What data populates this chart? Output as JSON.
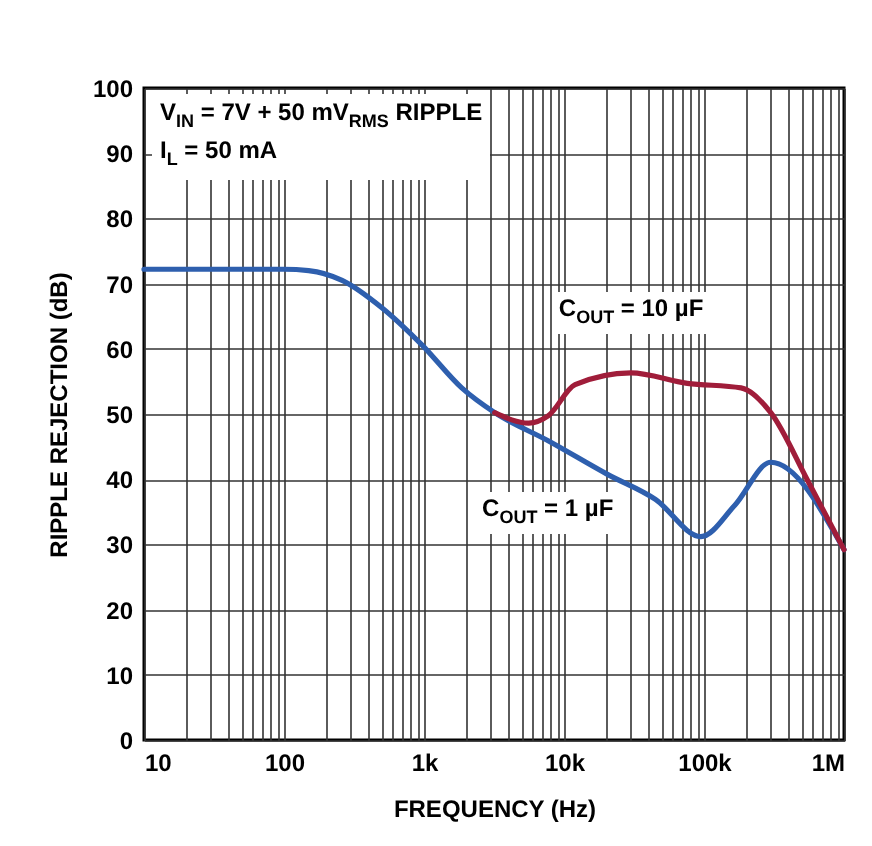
{
  "chart_data": {
    "type": "line",
    "annotations": [
      "V$_{IN}$ = 7V + 50 mV$_{RMS}$ RIPPLE",
      "I$_{L}$ = 50 mA"
    ],
    "xlabel": "FREQUENCY (Hz)",
    "ylabel": "RIPPLE REJECTION (dB)",
    "log": "x",
    "grid": true,
    "legend": false,
    "line_style": "solid",
    "marker": "none",
    "xlim": [
      10,
      1000000
    ],
    "ylim": [
      0,
      100
    ],
    "xticks": [
      {
        "value": 10,
        "label": "10"
      },
      {
        "value": 20,
        "label": null
      },
      {
        "value": 30,
        "label": null
      },
      {
        "value": 40,
        "label": null
      },
      {
        "value": 50,
        "label": null
      },
      {
        "value": 60,
        "label": null
      },
      {
        "value": 70,
        "label": null
      },
      {
        "value": 80,
        "label": null
      },
      {
        "value": 90,
        "label": null
      },
      {
        "value": 100,
        "label": "100"
      },
      {
        "value": 200,
        "label": null
      },
      {
        "value": 300,
        "label": null
      },
      {
        "value": 400,
        "label": null
      },
      {
        "value": 500,
        "label": null
      },
      {
        "value": 600,
        "label": null
      },
      {
        "value": 700,
        "label": null
      },
      {
        "value": 800,
        "label": null
      },
      {
        "value": 900,
        "label": null
      },
      {
        "value": 1000,
        "label": "1k"
      },
      {
        "value": 2000,
        "label": null
      },
      {
        "value": 3000,
        "label": null
      },
      {
        "value": 4000,
        "label": null
      },
      {
        "value": 5000,
        "label": null
      },
      {
        "value": 6000,
        "label": null
      },
      {
        "value": 7000,
        "label": null
      },
      {
        "value": 8000,
        "label": null
      },
      {
        "value": 9000,
        "label": null
      },
      {
        "value": 10000,
        "label": "10k"
      },
      {
        "value": 20000,
        "label": null
      },
      {
        "value": 30000,
        "label": null
      },
      {
        "value": 40000,
        "label": null
      },
      {
        "value": 50000,
        "label": null
      },
      {
        "value": 60000,
        "label": null
      },
      {
        "value": 70000,
        "label": null
      },
      {
        "value": 80000,
        "label": null
      },
      {
        "value": 90000,
        "label": null
      },
      {
        "value": 100000,
        "label": "100k"
      },
      {
        "value": 200000,
        "label": null
      },
      {
        "value": 300000,
        "label": null
      },
      {
        "value": 400000,
        "label": null
      },
      {
        "value": 500000,
        "label": null
      },
      {
        "value": 600000,
        "label": null
      },
      {
        "value": 700000,
        "label": null
      },
      {
        "value": 800000,
        "label": null
      },
      {
        "value": 900000,
        "label": null
      },
      {
        "value": 1000000,
        "label": "1M"
      }
    ],
    "yticks": [
      0,
      10,
      20,
      30,
      40,
      50,
      60,
      70,
      80,
      90,
      100
    ],
    "series": [
      {
        "name": "C$_{OUT}$ = 1 µF",
        "color": "#2e5fae",
        "x": [
          10,
          100,
          150,
          260,
          500,
          966,
          1860,
          3200,
          7700,
          20600,
          45000,
          95000,
          166000,
          300000,
          1000000
        ],
        "values": [
          72.2,
          72.2,
          72.0,
          70.5,
          66.3,
          60.6,
          54,
          50.2,
          45.9,
          40.7,
          36.9,
          31.2,
          36,
          42.6,
          29.2
        ]
      },
      {
        "name": "C$_{OUT}$ = 10 µF",
        "color": "#a01d3a",
        "x": [
          3200,
          5600,
          7700,
          12000,
          30000,
          76000,
          184000,
          300000,
          550000,
          1000000
        ],
        "values": [
          50.2,
          48.6,
          49.7,
          54.5,
          56.3,
          54.7,
          54.0,
          50.2,
          39.8,
          29.2
        ]
      }
    ]
  }
}
